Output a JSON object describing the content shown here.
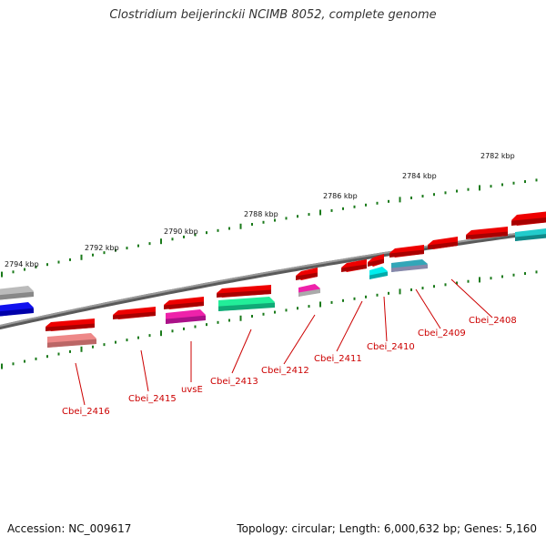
{
  "title": "Clostridium beijerinckii NCIMB 8052, complete genome",
  "footer": {
    "accession": "Accession: NC_009617",
    "info": "Topology: circular; Length: 6,000,632 bp; Genes: 5,160"
  },
  "colors": {
    "backbone": "#808080",
    "tick_dots": "#1a7a1a",
    "gene_red": "#ee0000",
    "label_line": "#cc0000"
  },
  "scale_ticks": [
    {
      "label": "2782 kbp"
    },
    {
      "label": "2784 kbp"
    },
    {
      "label": "2786 kbp"
    },
    {
      "label": "2788 kbp"
    },
    {
      "label": "2790 kbp"
    },
    {
      "label": "2792 kbp"
    },
    {
      "label": "2794 kbp"
    }
  ],
  "gene_labels": [
    "Cbei_2408",
    "Cbei_2409",
    "Cbei_2410",
    "Cbei_2411",
    "Cbei_2412",
    "Cbei_2413",
    "uvsE",
    "Cbei_2415",
    "Cbei_2416"
  ]
}
